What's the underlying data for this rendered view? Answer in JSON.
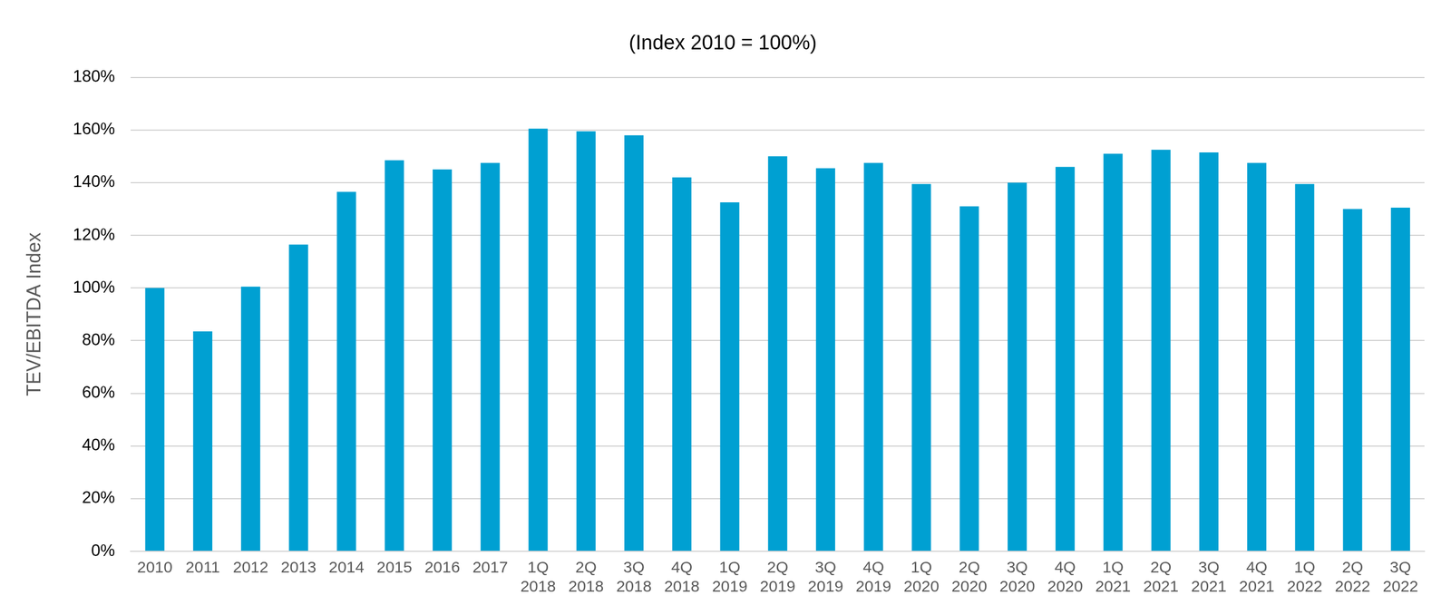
{
  "chart_data": {
    "type": "bar",
    "title": "(Index 2010 = 100%)",
    "y_label": "TEV/EBITDA Index",
    "categories": [
      "2010",
      "2011",
      "2012",
      "2013",
      "2014",
      "2015",
      "2016",
      "2017",
      "1Q 2018",
      "2Q 2018",
      "3Q 2018",
      "4Q 2018",
      "1Q 2019",
      "2Q 2019",
      "3Q 2019",
      "4Q 2019",
      "1Q 2020",
      "2Q 2020",
      "3Q 2020",
      "4Q 2020",
      "1Q 2021",
      "2Q 2021",
      "3Q 2021",
      "4Q 2021",
      "1Q 2022",
      "2Q 2022",
      "3Q 2022"
    ],
    "values": [
      100,
      83.5,
      100.5,
      116.5,
      136.5,
      148.5,
      145,
      147.5,
      160.5,
      159.5,
      158,
      142,
      132.5,
      150,
      145.5,
      147.5,
      139.5,
      131,
      140,
      146,
      151,
      152.5,
      151.5,
      147.5,
      139.5,
      130,
      130.5
    ],
    "color": "#00a0d2",
    "ylim": [
      0,
      180
    ],
    "yticks": [
      {
        "value": 0,
        "label": "0%"
      },
      {
        "value": 20,
        "label": "20%"
      },
      {
        "value": 40,
        "label": "40%"
      },
      {
        "value": 60,
        "label": "60%"
      },
      {
        "value": 80,
        "label": "80%"
      },
      {
        "value": 100,
        "label": "100%"
      },
      {
        "value": 120,
        "label": "120%"
      },
      {
        "value": 140,
        "label": "140%"
      },
      {
        "value": 160,
        "label": "160%"
      },
      {
        "value": 180,
        "label": "180%"
      }
    ],
    "grid": true
  }
}
